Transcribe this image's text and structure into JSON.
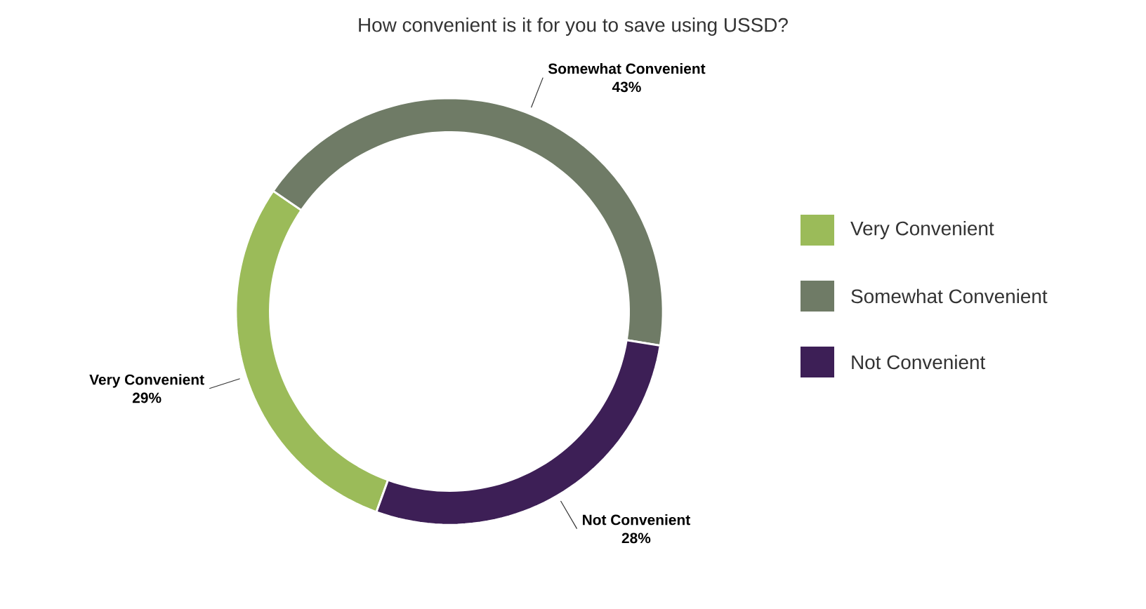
{
  "chart_data": {
    "type": "donut",
    "title": "How convenient is it for you to save using USSD?",
    "categories": [
      "Very Convenient",
      "Somewhat Convenient",
      "Not Convenient"
    ],
    "values": [
      29,
      43,
      28
    ],
    "value_labels": [
      "29%",
      "43%",
      "28%"
    ],
    "colors": [
      "#9bbb59",
      "#6f7b66",
      "#3d1f56"
    ],
    "legend": "right"
  }
}
